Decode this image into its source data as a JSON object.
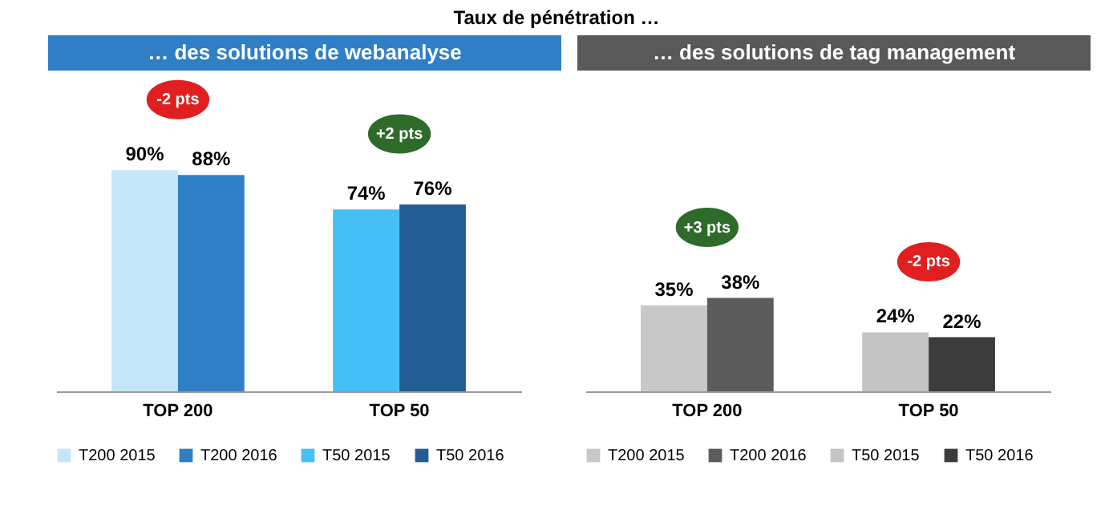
{
  "chart_data": [
    {
      "type": "bar",
      "title": "Taux de pénétration …",
      "subtitle": "… des solutions de webanalyse",
      "categories": [
        "TOP 200",
        "TOP 50"
      ],
      "series": [
        {
          "name": "T200 2015",
          "color": "#c5e6f8",
          "values": [
            90,
            null
          ],
          "value_labels": [
            "90%",
            null
          ]
        },
        {
          "name": "T200 2016",
          "color": "#2f7fc6",
          "values": [
            88,
            null
          ],
          "value_labels": [
            "88%",
            null
          ]
        },
        {
          "name": "T50 2015",
          "color": "#45bff5",
          "values": [
            null,
            74
          ],
          "value_labels": [
            null,
            "74%"
          ]
        },
        {
          "name": "T50 2016",
          "color": "#245d94",
          "values": [
            null,
            76
          ],
          "value_labels": [
            null,
            "76%"
          ]
        }
      ],
      "annotations": [
        "-2 pts",
        "+2 pts"
      ],
      "legend": "bottom",
      "tick_labels": "x"
    },
    {
      "type": "bar",
      "subtitle": "… des solutions de tag management",
      "categories": [
        "TOP 200",
        "TOP 50"
      ],
      "series": [
        {
          "name": "T200 2015",
          "color": "#c8c8c8",
          "values": [
            35,
            null
          ],
          "value_labels": [
            "35%",
            null
          ]
        },
        {
          "name": "T200 2016",
          "color": "#5c5c5c",
          "values": [
            38,
            null
          ],
          "value_labels": [
            "38%",
            null
          ]
        },
        {
          "name": "T50 2015",
          "color": "#c4c4c4",
          "values": [
            null,
            24
          ],
          "value_labels": [
            null,
            "24%"
          ]
        },
        {
          "name": "T50 2016",
          "color": "#3c3c3c",
          "values": [
            null,
            22
          ],
          "value_labels": [
            null,
            "22%"
          ]
        }
      ],
      "annotations": [
        "+3 pts",
        "-2 pts"
      ],
      "legend": "bottom",
      "tick_labels": "x"
    }
  ]
}
